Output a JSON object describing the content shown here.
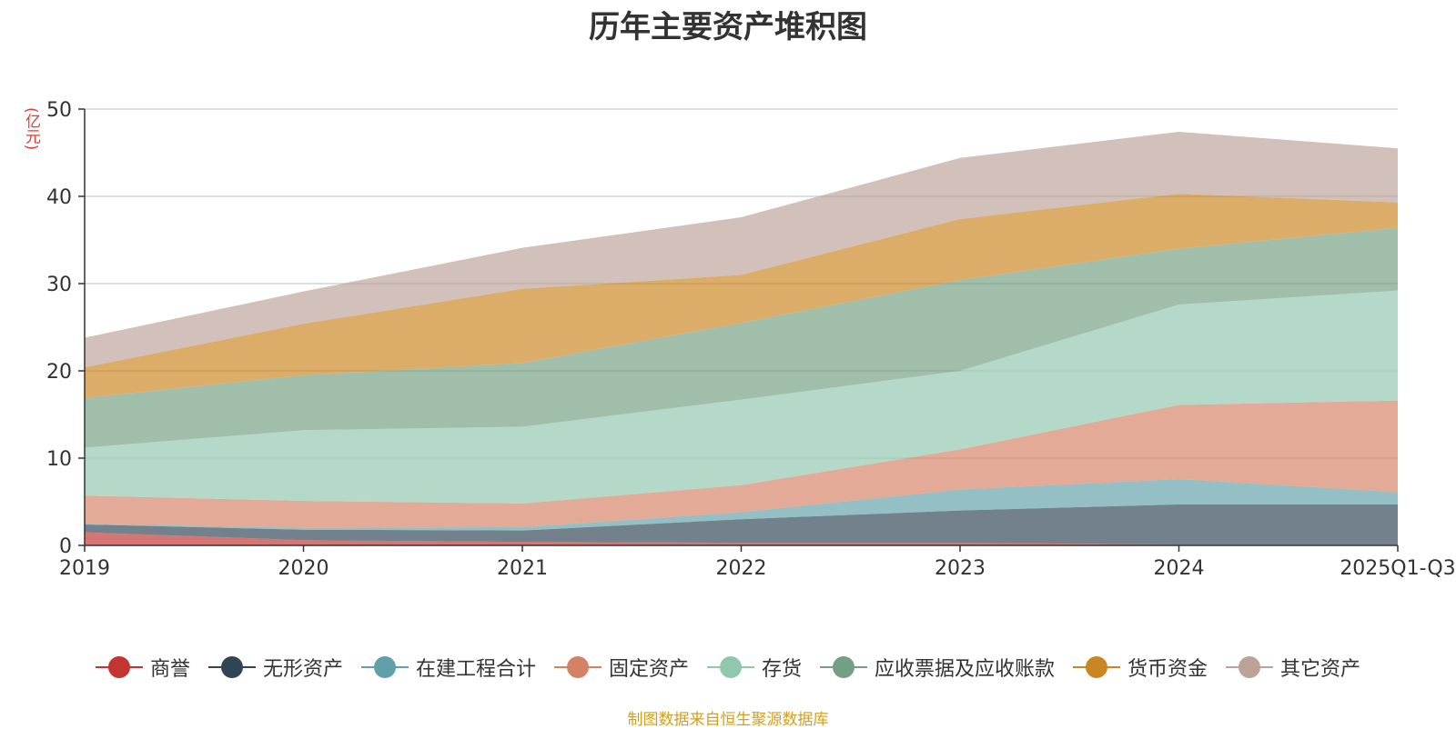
{
  "chart_data": {
    "type": "area",
    "stacked": true,
    "title": "历年主要资产堆积图",
    "unit_label": "(亿元)",
    "categories": [
      "2019",
      "2020",
      "2021",
      "2022",
      "2023",
      "2024",
      "2025Q1-Q3"
    ],
    "ylim": [
      0,
      50
    ],
    "yticks": [
      0,
      10,
      20,
      30,
      40,
      50
    ],
    "grid": true,
    "legend_position": "bottom",
    "series": [
      {
        "name": "商誉",
        "color": "#c23531",
        "values": [
          1.5,
          0.6,
          0.4,
          0.3,
          0.3,
          0.1,
          0.1
        ]
      },
      {
        "name": "无形资产",
        "color": "#2f4554",
        "values": [
          0.9,
          1.2,
          1.3,
          2.7,
          3.7,
          4.6,
          4.6
        ]
      },
      {
        "name": "在建工程合计",
        "color": "#61a0a8",
        "values": [
          0.1,
          0.2,
          0.4,
          0.8,
          2.4,
          2.9,
          1.4
        ]
      },
      {
        "name": "固定资产",
        "color": "#d48265",
        "values": [
          3.2,
          3.1,
          2.7,
          3.1,
          4.6,
          8.5,
          10.5
        ]
      },
      {
        "name": "存货",
        "color": "#91c7ae",
        "values": [
          5.5,
          8.1,
          8.8,
          9.8,
          9.0,
          11.5,
          12.6
        ]
      },
      {
        "name": "应收票据及应收账款",
        "color": "#749f83",
        "values": [
          5.7,
          6.3,
          7.3,
          8.8,
          10.4,
          6.4,
          7.2
        ]
      },
      {
        "name": "货币资金",
        "color": "#ca8622",
        "values": [
          3.5,
          5.9,
          8.5,
          5.5,
          7.0,
          6.3,
          2.9
        ]
      },
      {
        "name": "其它资产",
        "color": "#bda29a",
        "values": [
          3.4,
          3.7,
          4.7,
          6.6,
          7.0,
          7.1,
          6.2
        ]
      }
    ]
  },
  "source_note": "制图数据来自恒生聚源数据库"
}
